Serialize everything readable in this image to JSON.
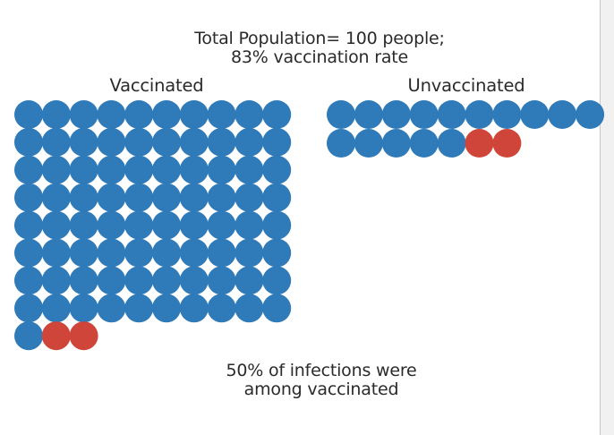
{
  "chart_data": {
    "type": "pictogram",
    "title_lines": [
      "Total Population= 100 people;",
      "83% vaccination rate"
    ],
    "groups": [
      {
        "label": "Vaccinated",
        "total": 83,
        "infected": 2
      },
      {
        "label": "Unvaccinated",
        "total": 17,
        "infected": 2
      }
    ],
    "footnote_lines": [
      "50% of infections were",
      "among vaccinated"
    ],
    "colors": {
      "not_infected": "#2f7ab8",
      "infected": "#d0453a"
    }
  }
}
